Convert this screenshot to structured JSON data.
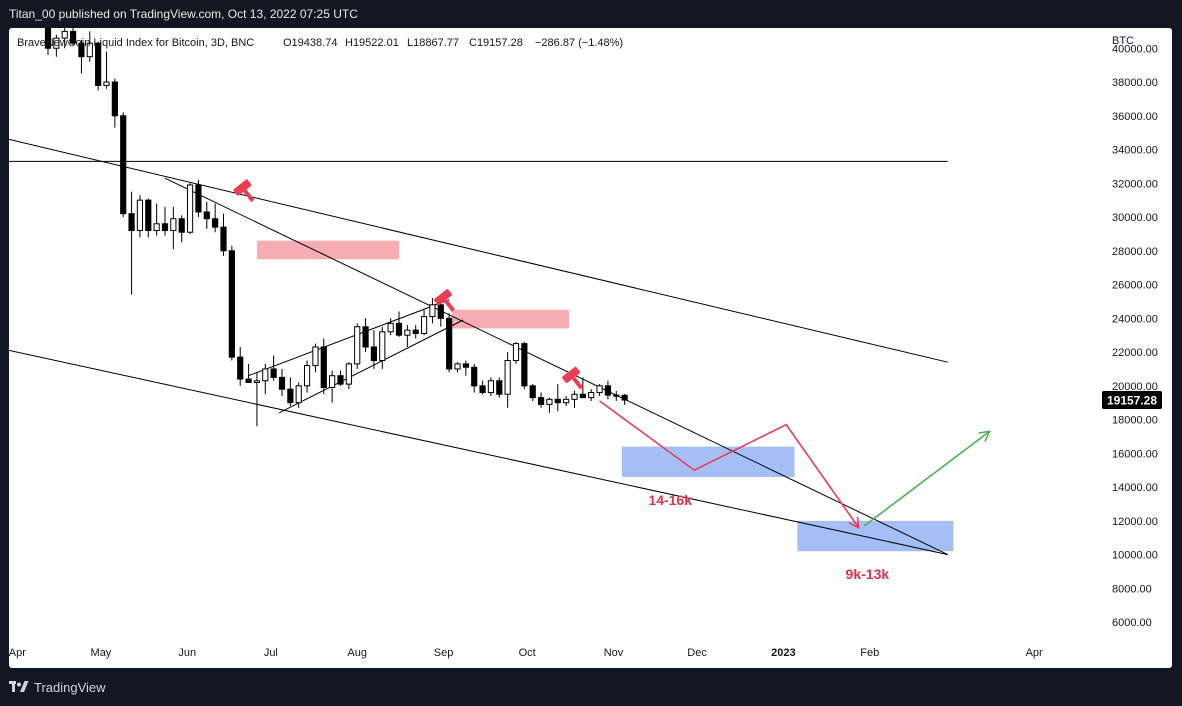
{
  "header": {
    "publisher": "Titan_00 published on TradingView.com, Oct 13, 2022 07:25 UTC"
  },
  "footer": {
    "brand": "TradingView",
    "brand_icon": "tradingview-logo-icon"
  },
  "colors": {
    "up_candle": "#ffffff",
    "down_candle": "#000000",
    "resistance_zone": "#f5a3ab",
    "target_zone": "#a0baf5",
    "projection_down": "#e83e55",
    "projection_up": "#4caf50",
    "last_price_bg": "#000000",
    "zone_label": "#e0334a"
  },
  "chart_data": {
    "type": "candlestick",
    "legend": {
      "symbol": "BraveNewCoin Liquid Index for Bitcoin, 3D, BNC",
      "open": "O19438.74",
      "high": "H19522.01",
      "low": "L18867.77",
      "close": "C19157.28",
      "change": "−286.87 (−1.48%)"
    },
    "price_axis": {
      "unit": "BTC",
      "ticks": [
        "40000.00",
        "38000.00",
        "36000.00",
        "34000.00",
        "32000.00",
        "30000.00",
        "28000.00",
        "26000.00",
        "24000.00",
        "22000.00",
        "20000.00",
        "18000.00",
        "16000.00",
        "14000.00",
        "12000.00",
        "10000.00",
        "8000.00",
        "6000.00"
      ],
      "range": [
        5000,
        41200
      ],
      "last_price": "19157.28",
      "last_price_value": 19157.28
    },
    "time_axis": {
      "ticks": [
        {
          "label": "Apr",
          "date": "2022-04-01"
        },
        {
          "label": "May",
          "date": "2022-05-01"
        },
        {
          "label": "Jun",
          "date": "2022-06-01"
        },
        {
          "label": "Jul",
          "date": "2022-07-01"
        },
        {
          "label": "Aug",
          "date": "2022-08-01"
        },
        {
          "label": "Sep",
          "date": "2022-09-01"
        },
        {
          "label": "Oct",
          "date": "2022-10-01"
        },
        {
          "label": "Nov",
          "date": "2022-11-01"
        },
        {
          "label": "Dec",
          "date": "2022-12-01"
        },
        {
          "label": "2023",
          "date": "2023-01-01",
          "bold": true
        },
        {
          "label": "Feb",
          "date": "2023-02-01"
        },
        {
          "label": "Apr",
          "date": "2023-04-01"
        }
      ],
      "range": [
        "2022-03-29",
        "2023-04-25"
      ]
    },
    "candle_interval_days": 3,
    "candles": [
      [
        "2022-04-09",
        42500,
        43200,
        41500,
        42100
      ],
      [
        "2022-04-12",
        42100,
        42400,
        39600,
        40000
      ],
      [
        "2022-04-15",
        40000,
        40800,
        39500,
        40600
      ],
      [
        "2022-04-18",
        40600,
        41500,
        40000,
        41000
      ],
      [
        "2022-04-21",
        41000,
        42500,
        40200,
        40300
      ],
      [
        "2022-04-24",
        40300,
        40500,
        38500,
        39500
      ],
      [
        "2022-04-27",
        39500,
        41000,
        39200,
        40300
      ],
      [
        "2022-04-30",
        40300,
        40400,
        37500,
        37800
      ],
      [
        "2022-05-03",
        37800,
        39800,
        37600,
        38000
      ],
      [
        "2022-05-06",
        38000,
        38200,
        35300,
        36000
      ],
      [
        "2022-05-09",
        36000,
        36200,
        30000,
        30200
      ],
      [
        "2022-05-12",
        30200,
        31500,
        25400,
        29200
      ],
      [
        "2022-05-15",
        29200,
        31300,
        28800,
        31000
      ],
      [
        "2022-05-18",
        31000,
        31100,
        28800,
        29200
      ],
      [
        "2022-05-21",
        29200,
        30800,
        28900,
        29600
      ],
      [
        "2022-05-24",
        29600,
        30600,
        28900,
        29200
      ],
      [
        "2022-05-27",
        29200,
        30600,
        28100,
        29900
      ],
      [
        "2022-05-30",
        29900,
        30100,
        28500,
        29100
      ],
      [
        "2022-06-02",
        29100,
        32000,
        29000,
        31900
      ],
      [
        "2022-06-05",
        31900,
        32200,
        30000,
        30300
      ],
      [
        "2022-06-08",
        30300,
        30900,
        29300,
        29900
      ],
      [
        "2022-06-11",
        29900,
        30800,
        29100,
        29400
      ],
      [
        "2022-06-14",
        29400,
        30200,
        27700,
        28000
      ],
      [
        "2022-06-17",
        28000,
        28300,
        21500,
        21700
      ],
      [
        "2022-06-20",
        21700,
        22300,
        20000,
        20400
      ],
      [
        "2022-06-23",
        20400,
        21300,
        20200,
        20200
      ],
      [
        "2022-06-26",
        20200,
        20800,
        17600,
        20300
      ],
      [
        "2022-06-29",
        20300,
        21300,
        19500,
        21000
      ],
      [
        "2022-07-02",
        21000,
        21800,
        20300,
        20500
      ],
      [
        "2022-07-05",
        20500,
        21000,
        19400,
        19800
      ],
      [
        "2022-07-08",
        19800,
        20500,
        18800,
        19000
      ],
      [
        "2022-07-11",
        19000,
        20200,
        18700,
        20000
      ],
      [
        "2022-07-14",
        20000,
        21500,
        19600,
        21200
      ],
      [
        "2022-07-17",
        21200,
        22500,
        20800,
        22300
      ],
      [
        "2022-07-20",
        22300,
        22800,
        19500,
        19900
      ],
      [
        "2022-07-23",
        19900,
        20900,
        19000,
        20600
      ],
      [
        "2022-07-26",
        20600,
        20900,
        20000,
        20100
      ],
      [
        "2022-07-29",
        20100,
        21400,
        19800,
        21300
      ],
      [
        "2022-08-01",
        21300,
        23700,
        21000,
        23500
      ],
      [
        "2022-08-04",
        23500,
        24000,
        22000,
        22300
      ],
      [
        "2022-08-07",
        22300,
        23300,
        21000,
        21500
      ],
      [
        "2022-08-10",
        21500,
        23500,
        21000,
        23200
      ],
      [
        "2022-08-13",
        23200,
        24000,
        23000,
        23700
      ],
      [
        "2022-08-16",
        23700,
        24400,
        22900,
        23000
      ],
      [
        "2022-08-19",
        23000,
        23600,
        22300,
        23300
      ],
      [
        "2022-08-22",
        23300,
        23600,
        22800,
        23100
      ],
      [
        "2022-08-25",
        23100,
        24500,
        23000,
        24100
      ],
      [
        "2022-08-28",
        24100,
        25200,
        23700,
        24800
      ],
      [
        "2022-08-31",
        24800,
        25100,
        23500,
        24000
      ],
      [
        "2022-09-03",
        24000,
        24300,
        20800,
        21000
      ],
      [
        "2022-09-06",
        21000,
        21400,
        20800,
        21300
      ],
      [
        "2022-09-09",
        21300,
        21500,
        20600,
        21100
      ],
      [
        "2022-09-12",
        21100,
        21300,
        19600,
        20000
      ],
      [
        "2022-09-15",
        20000,
        20300,
        19500,
        19600
      ],
      [
        "2022-09-18",
        19600,
        20500,
        19400,
        20300
      ],
      [
        "2022-09-21",
        20300,
        20500,
        19300,
        19500
      ],
      [
        "2022-09-24",
        19500,
        22000,
        18700,
        21500
      ],
      [
        "2022-09-27",
        21500,
        22600,
        21300,
        22500
      ],
      [
        "2022-09-30",
        22500,
        22600,
        19800,
        20000
      ],
      [
        "2022-10-03",
        20000,
        20100,
        19100,
        19300
      ],
      [
        "2022-10-06",
        19300,
        19600,
        18700,
        18900
      ],
      [
        "2022-10-09",
        18900,
        19300,
        18400,
        19200
      ],
      [
        "2022-10-12",
        19200,
        20100,
        18500,
        19000
      ],
      [
        "2022-10-15",
        19000,
        19400,
        18800,
        19200
      ],
      [
        "2022-10-18",
        19200,
        19700,
        18700,
        19500
      ],
      [
        "2022-10-21",
        19500,
        20500,
        19300,
        19300
      ],
      [
        "2022-10-24",
        19300,
        19800,
        19100,
        19600
      ],
      [
        "2022-10-27",
        19600,
        20100,
        19400,
        20000
      ],
      [
        "2022-10-30",
        20000,
        20300,
        19200,
        19450
      ],
      [
        "2022-11-02",
        19450,
        19700,
        19100,
        19400
      ],
      [
        "2022-11-05",
        19438.74,
        19522.01,
        18867.77,
        19157.28
      ]
    ],
    "trendlines": [
      {
        "from": [
          "2022-03-29",
          33300
        ],
        "to": [
          "2023-03-01",
          33300
        ],
        "style": "channel-top"
      },
      {
        "from": [
          "2022-03-29",
          34600
        ],
        "to": [
          "2023-03-01",
          21400
        ],
        "style": "channel-mid"
      },
      {
        "from": [
          "2022-03-29",
          22100
        ],
        "to": [
          "2023-03-01",
          10000
        ],
        "style": "channel-bottom"
      },
      {
        "from": [
          "2022-05-24",
          32300
        ],
        "to": [
          "2023-03-01",
          10000
        ],
        "style": "descending-resistance"
      },
      {
        "from": [
          "2022-06-23",
          20600
        ],
        "to": [
          "2022-09-03",
          25100
        ],
        "style": "wedge-upper"
      },
      {
        "from": [
          "2022-07-04",
          18400
        ],
        "to": [
          "2022-09-08",
          23900
        ],
        "style": "wedge-lower"
      }
    ],
    "zones": [
      {
        "kind": "resistance",
        "x0": "2022-06-26",
        "x1": "2022-08-16",
        "y0": 27500,
        "y1": 28600
      },
      {
        "kind": "resistance",
        "x0": "2022-09-04",
        "x1": "2022-10-16",
        "y0": 23400,
        "y1": 24500
      },
      {
        "kind": "target",
        "label": "14-16k",
        "x0": "2022-11-04",
        "x1": "2023-01-05",
        "y0": 14600,
        "y1": 16400
      },
      {
        "kind": "target",
        "label": "9k-13k",
        "x0": "2023-01-06",
        "x1": "2023-03-03",
        "y0": 10200,
        "y1": 12000
      }
    ],
    "projections": [
      {
        "color": "down",
        "points": [
          [
            "2022-10-27",
            19100
          ],
          [
            "2022-11-30",
            15000
          ],
          [
            "2023-01-02",
            17700
          ],
          [
            "2023-01-28",
            11600
          ]
        ],
        "arrow": true
      },
      {
        "color": "up",
        "points": [
          [
            "2023-01-30",
            11700
          ],
          [
            "2023-03-16",
            17300
          ]
        ],
        "arrow": true
      }
    ],
    "markers": [
      {
        "icon": "gavel-icon",
        "date": "2022-06-21",
        "value": 31700
      },
      {
        "icon": "gavel-icon",
        "date": "2022-09-01",
        "value": 25200
      },
      {
        "icon": "gavel-icon",
        "date": "2022-10-17",
        "value": 20600
      }
    ]
  }
}
